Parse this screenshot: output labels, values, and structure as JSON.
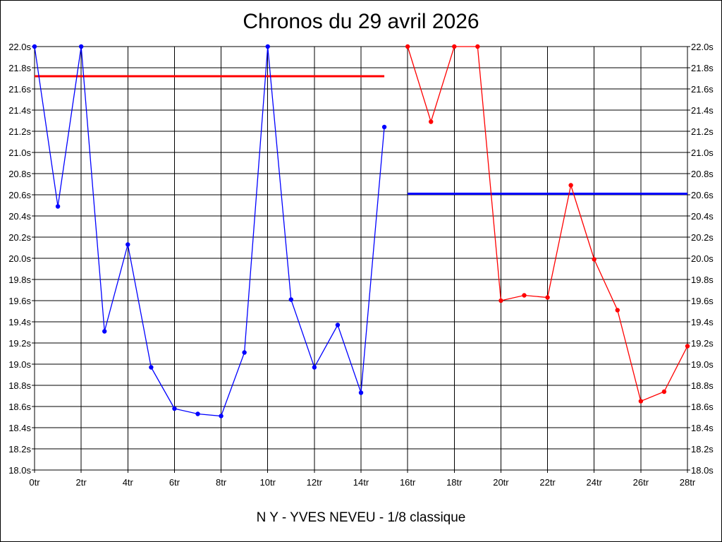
{
  "chart_data": {
    "type": "line",
    "title": "Chronos du 29 avril 2026",
    "footer": "N Y - YVES NEVEU - 1/8 classique",
    "xlim": [
      0,
      28
    ],
    "ylim": [
      18.0,
      22.0
    ],
    "x_tick_step": 2,
    "x_tick_suffix": "tr",
    "y_tick_step": 0.2,
    "y_tick_suffix": "s",
    "y_axis_labels_both_sides": true,
    "grid": true,
    "series": [
      {
        "color": "#0000ff",
        "x": [
          0,
          1,
          2,
          3,
          4,
          5,
          6,
          7,
          8,
          9,
          10,
          11,
          12,
          13,
          14,
          15
        ],
        "values": [
          22.0,
          20.49,
          22.0,
          19.31,
          20.13,
          18.97,
          18.58,
          18.53,
          18.51,
          19.11,
          22.0,
          19.61,
          18.97,
          19.37,
          18.73,
          21.24
        ]
      },
      {
        "color": "#ff0000",
        "x": [
          16,
          17,
          18,
          19,
          20,
          21,
          22,
          23,
          24,
          25,
          26,
          27,
          28
        ],
        "values": [
          22.0,
          21.29,
          22.0,
          22.0,
          19.6,
          19.65,
          19.63,
          20.69,
          19.99,
          19.51,
          18.65,
          18.74,
          19.17
        ]
      }
    ],
    "reference_lines": [
      {
        "color": "#ff0000",
        "value": 21.72,
        "x_from": 0,
        "x_to": 15
      },
      {
        "color": "#0000ff",
        "value": 20.61,
        "x_from": 16,
        "x_to": 28
      }
    ]
  }
}
